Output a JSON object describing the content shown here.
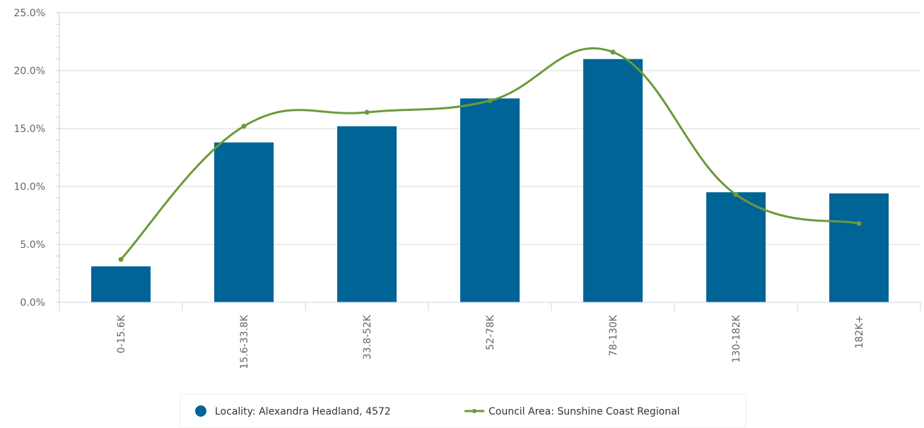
{
  "chart_data": {
    "type": "bar",
    "categories": [
      "0-15.6K",
      "15.6-33.8K",
      "33.8-52K",
      "52-78K",
      "78-130K",
      "130-182K",
      "182K+"
    ],
    "series": [
      {
        "name": "Locality: Alexandra Headland, 4572",
        "type": "bar",
        "color": "#006496",
        "values": [
          3.1,
          13.8,
          15.2,
          17.6,
          21.0,
          9.5,
          9.4
        ]
      },
      {
        "name": "Council Area: Sunshine Coast Regional",
        "type": "line",
        "smooth": true,
        "color": "#6a9a3a",
        "values": [
          3.7,
          15.2,
          16.4,
          17.4,
          21.6,
          9.3,
          6.8
        ]
      }
    ],
    "ylim": [
      0,
      25
    ],
    "yticks": [
      "0.0%",
      "5.0%",
      "10.0%",
      "15.0%",
      "20.0%",
      "25.0%"
    ],
    "grid": true,
    "legend": "bottom-center"
  }
}
